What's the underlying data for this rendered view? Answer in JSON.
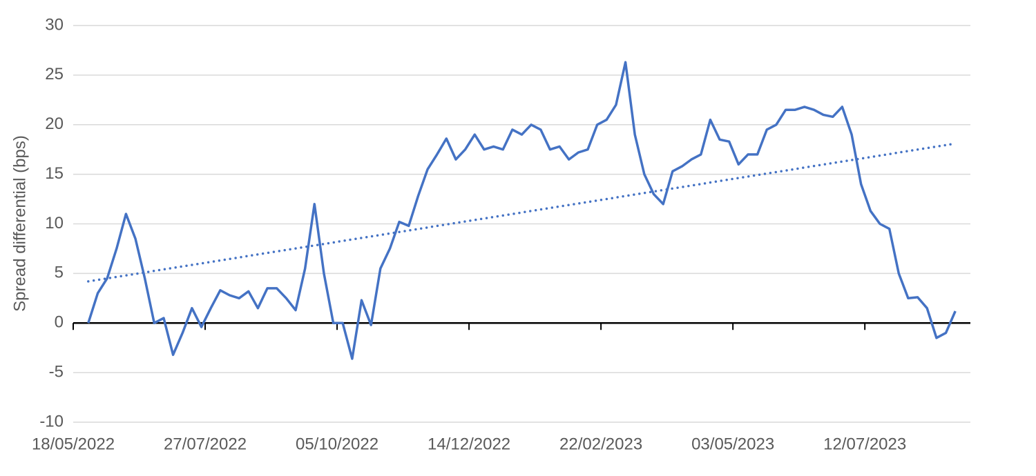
{
  "chart_data": {
    "type": "line",
    "y_label": "Spread differential (bps)",
    "color": "#4472c4",
    "grid": true,
    "xlim": [
      "18/05/2022",
      "06/09/2023"
    ],
    "xticks": [
      "18/05/2022",
      "27/07/2022",
      "05/10/2022",
      "14/12/2022",
      "22/02/2023",
      "03/05/2023",
      "12/07/2023"
    ],
    "ylim": [
      -10,
      30
    ],
    "yticks": [
      -10,
      -5,
      0,
      5,
      10,
      15,
      20,
      25,
      30
    ],
    "x": [
      "26/05/2022",
      "31/05/2022",
      "05/06/2022",
      "10/06/2022",
      "15/06/2022",
      "20/06/2022",
      "25/06/2022",
      "30/06/2022",
      "05/07/2022",
      "10/07/2022",
      "15/07/2022",
      "20/07/2022",
      "25/07/2022",
      "30/07/2022",
      "04/08/2022",
      "09/08/2022",
      "14/08/2022",
      "19/08/2022",
      "24/08/2022",
      "29/08/2022",
      "03/09/2022",
      "08/09/2022",
      "13/09/2022",
      "18/09/2022",
      "23/09/2022",
      "28/09/2022",
      "03/10/2022",
      "08/10/2022",
      "13/10/2022",
      "18/10/2022",
      "23/10/2022",
      "28/10/2022",
      "02/11/2022",
      "07/11/2022",
      "12/11/2022",
      "17/11/2022",
      "22/11/2022",
      "27/11/2022",
      "02/12/2022",
      "07/12/2022",
      "12/12/2022",
      "17/12/2022",
      "22/12/2022",
      "27/12/2022",
      "01/01/2023",
      "06/01/2023",
      "11/01/2023",
      "16/01/2023",
      "21/01/2023",
      "26/01/2023",
      "31/01/2023",
      "05/02/2023",
      "10/02/2023",
      "15/02/2023",
      "20/02/2023",
      "25/02/2023",
      "02/03/2023",
      "07/03/2023",
      "12/03/2023",
      "17/03/2023",
      "22/03/2023",
      "27/03/2023",
      "01/04/2023",
      "06/04/2023",
      "11/04/2023",
      "16/04/2023",
      "21/04/2023",
      "26/04/2023",
      "01/05/2023",
      "06/05/2023",
      "11/05/2023",
      "16/05/2023",
      "21/05/2023",
      "26/05/2023",
      "31/05/2023",
      "05/06/2023",
      "10/06/2023",
      "15/06/2023",
      "20/06/2023",
      "25/06/2023",
      "30/06/2023",
      "05/07/2023",
      "10/07/2023",
      "15/07/2023",
      "20/07/2023",
      "25/07/2023",
      "30/07/2023",
      "04/08/2023",
      "09/08/2023",
      "14/08/2023",
      "19/08/2023",
      "24/08/2023",
      "29/08/2023"
    ],
    "values": [
      0,
      3,
      4.5,
      7.5,
      11,
      8.5,
      4.5,
      0,
      0.5,
      -3.2,
      -1,
      1.5,
      -0.4,
      1.5,
      3.3,
      2.8,
      2.5,
      3.2,
      1.5,
      3.5,
      3.5,
      2.5,
      1.3,
      5.5,
      12,
      5,
      0,
      0,
      -3.6,
      2.3,
      -0.2,
      5.5,
      7.5,
      10.2,
      9.8,
      12.8,
      15.5,
      17,
      18.6,
      16.5,
      17.5,
      19,
      17.5,
      17.8,
      17.5,
      19.5,
      19,
      20,
      19.5,
      17.5,
      17.8,
      16.5,
      17.2,
      17.5,
      20,
      20.5,
      22,
      26.3,
      19,
      15,
      13,
      12,
      15.3,
      15.8,
      16.5,
      17,
      20.5,
      18.5,
      18.3,
      16,
      17,
      17,
      19.5,
      20,
      21.5,
      21.5,
      21.8,
      21.5,
      21,
      20.8,
      21.8,
      19,
      14,
      11.3,
      10,
      9.5,
      5,
      2.5,
      2.6,
      1.5,
      -1.5,
      -1,
      1.2
    ],
    "trend": {
      "x": [
        "26/05/2022",
        "29/08/2023"
      ],
      "values": [
        4.2,
        18.1
      ]
    }
  }
}
